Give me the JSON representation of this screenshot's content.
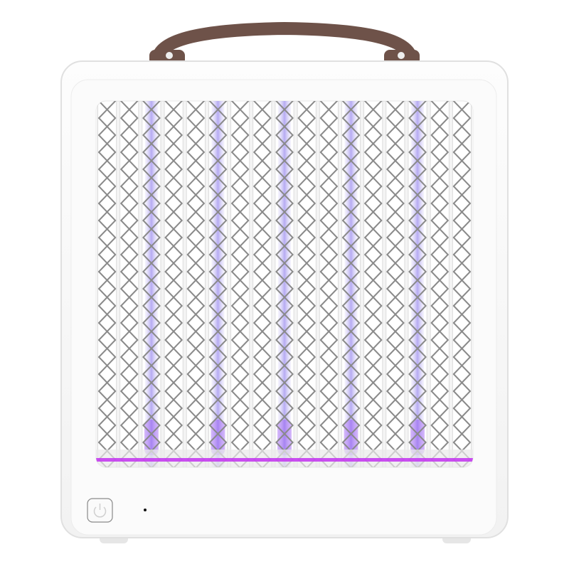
{
  "product": {
    "colors": {
      "body": "#f7f7f7",
      "body_edge": "#e2e2e2",
      "handle": "#6e5249",
      "grid_wire": "#8a8a8a",
      "uv_tube": "#b9aef0",
      "uv_glow": "#8c3cf0",
      "glow_bar": "#c43cf0"
    },
    "icons": [
      "power-button-icon",
      "indicator-light-icon"
    ],
    "uv_tube_count": 5,
    "grid_column_count": 17
  }
}
